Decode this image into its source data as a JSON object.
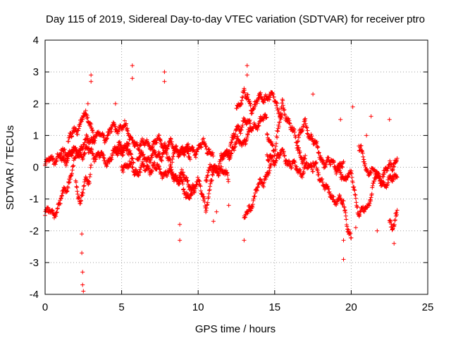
{
  "chart_data": {
    "type": "scatter",
    "title": "Day 115 of 2019, Sidereal Day-to-day VTEC variation (SDTVAR) for receiver ptro",
    "xlabel": "GPS time / hours",
    "ylabel": "SDTVAR / TECUs",
    "xlim": [
      0,
      25
    ],
    "ylim": [
      -4,
      4
    ],
    "xticks": [
      "0",
      "5",
      "10",
      "15",
      "20",
      "25"
    ],
    "yticks": [
      "4",
      "3",
      "2",
      "1",
      "0",
      "-1",
      "-2",
      "-3",
      "-4"
    ],
    "grid": true,
    "marker": "+",
    "series": [
      {
        "name": "SDTVAR",
        "color": "#ff0000",
        "tracks": [
          {
            "start": 0.0,
            "end": 2.0,
            "points": [
              [
                0,
                -1.45
              ],
              [
                0.5,
                -1.4
              ],
              [
                0.8,
                -1.3
              ],
              [
                1.0,
                -1.1
              ],
              [
                1.5,
                -0.5
              ],
              [
                2.0,
                0.2
              ]
            ]
          },
          {
            "start": 0.0,
            "end": 5.8,
            "points": [
              [
                0,
                0.1
              ],
              [
                1.0,
                0.4
              ],
              [
                1.5,
                0.5
              ],
              [
                2.0,
                0.4
              ],
              [
                3.0,
                0.5
              ],
              [
                4.0,
                0.2
              ],
              [
                5.0,
                0.6
              ],
              [
                5.8,
                0.3
              ]
            ]
          },
          {
            "start": 1.0,
            "end": 5.5,
            "points": [
              [
                1.0,
                0.2
              ],
              [
                2.0,
                0.5
              ],
              [
                3.0,
                0.9
              ],
              [
                4.0,
                1.0
              ],
              [
                4.5,
                1.2
              ],
              [
                5.0,
                1.3
              ],
              [
                5.5,
                1.1
              ]
            ]
          },
          {
            "start": 1.5,
            "end": 3.2,
            "points": [
              [
                1.5,
                0.8
              ],
              [
                2.0,
                1.2
              ],
              [
                2.5,
                1.6
              ],
              [
                3.0,
                1.4
              ],
              [
                3.2,
                1.0
              ]
            ]
          },
          {
            "start": 2.0,
            "end": 3.0,
            "points": [
              [
                2.0,
                -0.3
              ],
              [
                2.3,
                -1.2
              ],
              [
                2.6,
                -0.5
              ],
              [
                2.9,
                -0.3
              ],
              [
                3.0,
                0.2
              ]
            ]
          },
          {
            "start": 4.5,
            "end": 9.5,
            "points": [
              [
                4.5,
                0.5
              ],
              [
                5.5,
                0.8
              ],
              [
                6.5,
                0.7
              ],
              [
                7.5,
                0.8
              ],
              [
                8.5,
                0.6
              ],
              [
                9.5,
                0.4
              ]
            ]
          },
          {
            "start": 5.0,
            "end": 9.5,
            "points": [
              [
                5.0,
                0.1
              ],
              [
                6.0,
                -0.1
              ],
              [
                7.0,
                0.0
              ],
              [
                8.0,
                -0.2
              ],
              [
                9.0,
                -0.3
              ],
              [
                9.5,
                -0.5
              ]
            ]
          },
          {
            "start": 6.0,
            "end": 9.8,
            "points": [
              [
                6.0,
                0.3
              ],
              [
                7.0,
                0.3
              ],
              [
                7.8,
                0.5
              ],
              [
                8.5,
                -0.3
              ],
              [
                9.2,
                -0.8
              ],
              [
                9.8,
                -0.9
              ]
            ]
          },
          {
            "start": 8.3,
            "end": 11.0,
            "points": [
              [
                8.3,
                0.3
              ],
              [
                9.0,
                0.6
              ],
              [
                9.5,
                0.5
              ],
              [
                10.0,
                0.6
              ],
              [
                10.5,
                0.7
              ],
              [
                11.0,
                0.4
              ]
            ]
          },
          {
            "start": 9.5,
            "end": 12.0,
            "points": [
              [
                9.5,
                -0.6
              ],
              [
                10.0,
                -0.5
              ],
              [
                10.5,
                -1.2
              ],
              [
                11.0,
                -0.2
              ],
              [
                11.5,
                0.0
              ],
              [
                12.0,
                -0.5
              ]
            ]
          },
          {
            "start": 10.5,
            "end": 14.5,
            "points": [
              [
                10.5,
                -0.3
              ],
              [
                11.5,
                0.2
              ],
              [
                12.5,
                0.7
              ],
              [
                13.3,
                1.0
              ],
              [
                13.8,
                1.4
              ],
              [
                14.5,
                1.5
              ]
            ]
          },
          {
            "start": 11.5,
            "end": 13.5,
            "points": [
              [
                11.5,
                0.2
              ],
              [
                12.0,
                0.6
              ],
              [
                12.5,
                1.1
              ],
              [
                13.0,
                1.5
              ],
              [
                13.5,
                1.2
              ]
            ]
          },
          {
            "start": 12.5,
            "end": 15.5,
            "points": [
              [
                12.5,
                1.9
              ],
              [
                13.0,
                2.3
              ],
              [
                13.5,
                1.9
              ],
              [
                14.0,
                2.1
              ],
              [
                14.5,
                2.3
              ],
              [
                15.0,
                2.1
              ],
              [
                15.5,
                1.6
              ]
            ]
          },
          {
            "start": 13.0,
            "end": 14.8,
            "points": [
              [
                13.0,
                -1.7
              ],
              [
                13.5,
                -1.1
              ],
              [
                14.0,
                -0.6
              ],
              [
                14.5,
                -0.2
              ],
              [
                14.8,
                0.0
              ]
            ]
          },
          {
            "start": 14.5,
            "end": 17.0,
            "points": [
              [
                14.5,
                0.9
              ],
              [
                15.0,
                0.6
              ],
              [
                15.5,
                1.9
              ],
              [
                16.0,
                1.4
              ],
              [
                16.5,
                0.6
              ],
              [
                17.0,
                0.2
              ]
            ]
          },
          {
            "start": 14.5,
            "end": 17.5,
            "points": [
              [
                14.5,
                0.2
              ],
              [
                15.5,
                0.4
              ],
              [
                16.5,
                -0.1
              ],
              [
                17.5,
                0.0
              ]
            ]
          },
          {
            "start": 16.5,
            "end": 19.5,
            "points": [
              [
                16.5,
                1.0
              ],
              [
                17.0,
                1.3
              ],
              [
                17.5,
                0.9
              ],
              [
                18.0,
                0.3
              ],
              [
                18.5,
                0.1
              ],
              [
                19.0,
                0.1
              ],
              [
                19.5,
                0.0
              ]
            ]
          },
          {
            "start": 17.5,
            "end": 20.0,
            "points": [
              [
                17.5,
                0.1
              ],
              [
                18.0,
                -0.3
              ],
              [
                18.5,
                -0.8
              ],
              [
                19.0,
                -1.0
              ],
              [
                19.5,
                -1.2
              ],
              [
                20.0,
                -2.3
              ]
            ]
          },
          {
            "start": 19.0,
            "end": 23.0,
            "points": [
              [
                19.0,
                -0.2
              ],
              [
                20.0,
                -0.3
              ],
              [
                20.5,
                -1.4
              ],
              [
                21.0,
                -1.4
              ],
              [
                21.5,
                -0.4
              ],
              [
                22.5,
                -0.5
              ],
              [
                23.0,
                -0.2
              ]
            ]
          },
          {
            "start": 20.5,
            "end": 23.0,
            "points": [
              [
                20.5,
                0.6
              ],
              [
                21.0,
                0.0
              ],
              [
                21.5,
                -0.2
              ],
              [
                22.0,
                -0.3
              ],
              [
                22.5,
                0.0
              ],
              [
                23.0,
                0.3
              ]
            ]
          },
          {
            "start": 22.5,
            "end": 23.0,
            "points": [
              [
                22.5,
                -1.6
              ],
              [
                22.8,
                -1.9
              ],
              [
                23.0,
                -1.5
              ]
            ]
          }
        ],
        "isolated": [
          [
            2.4,
            -2.1
          ],
          [
            2.4,
            -2.7
          ],
          [
            2.45,
            -3.3
          ],
          [
            2.45,
            -3.7
          ],
          [
            2.5,
            -3.9
          ],
          [
            2.8,
            2.0
          ],
          [
            3.0,
            2.9
          ],
          [
            3.0,
            2.7
          ],
          [
            4.6,
            2.0
          ],
          [
            5.7,
            3.2
          ],
          [
            5.7,
            2.8
          ],
          [
            7.8,
            3.0
          ],
          [
            7.8,
            2.7
          ],
          [
            8.8,
            -1.8
          ],
          [
            8.8,
            -2.3
          ],
          [
            11.0,
            -1.7
          ],
          [
            11.2,
            -1.4
          ],
          [
            12.0,
            -1.2
          ],
          [
            13.2,
            3.2
          ],
          [
            13.2,
            2.9
          ],
          [
            13.0,
            -2.3
          ],
          [
            17.5,
            2.3
          ],
          [
            19.5,
            -2.9
          ],
          [
            19.5,
            -2.3
          ],
          [
            20.3,
            -1.9
          ],
          [
            21.7,
            -2.0
          ],
          [
            22.5,
            1.5
          ],
          [
            22.8,
            -2.4
          ],
          [
            20.1,
            1.9
          ],
          [
            21.3,
            1.6
          ],
          [
            21.0,
            1.0
          ],
          [
            19.3,
            1.5
          ]
        ]
      }
    ]
  }
}
